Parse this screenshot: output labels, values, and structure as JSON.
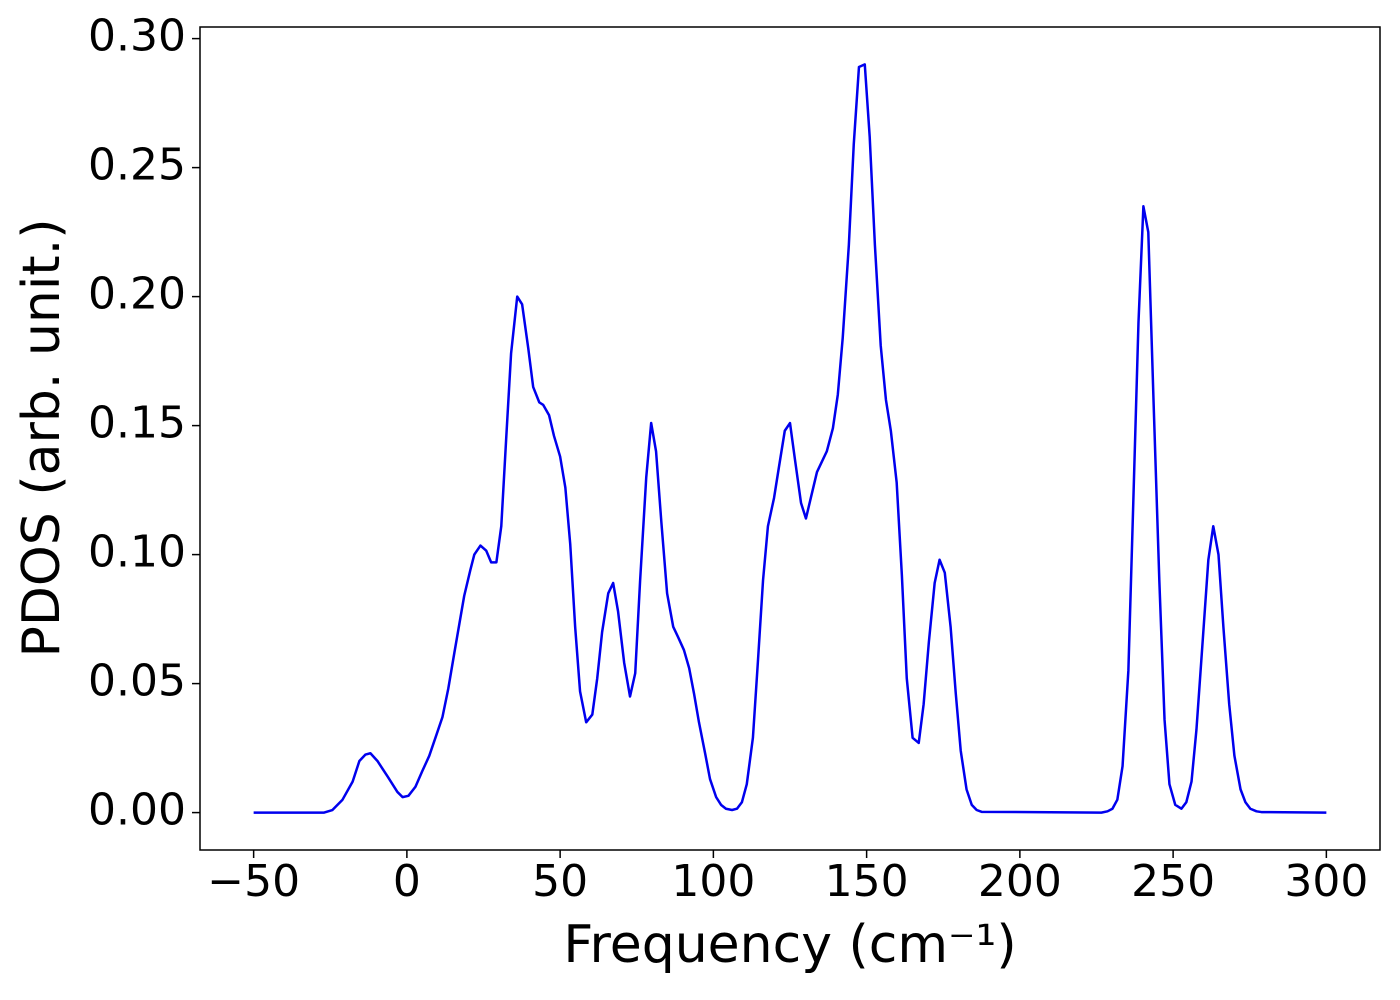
{
  "chart_data": {
    "type": "line",
    "xlabel": "Frequency (cm⁻¹)",
    "ylabel": "PDOS (arb. unit.)",
    "xlim": [
      -67.5,
      317.5
    ],
    "ylim": [
      -0.0145,
      0.3045
    ],
    "xticks": [
      {
        "value": -50,
        "label": "−50"
      },
      0,
      50,
      100,
      150,
      200,
      250,
      300
    ],
    "yticks": [
      {
        "value": 0,
        "label": "0.00"
      },
      {
        "value": 0.05,
        "label": "0.05"
      },
      {
        "value": 0.1,
        "label": "0.10"
      },
      {
        "value": 0.15,
        "label": "0.15"
      },
      {
        "value": 0.2,
        "label": "0.20"
      },
      {
        "value": 0.25,
        "label": "0.25"
      },
      {
        "value": 0.3,
        "label": "0.30"
      }
    ],
    "grid": false,
    "color": "#0000ee",
    "x": [
      -50,
      -27,
      -24.3,
      -21,
      -17.7,
      -15.5,
      -13.5,
      -11.9,
      -9.6,
      -6.3,
      -3.1,
      -1.4,
      0.5,
      2.8,
      5,
      7.3,
      9.6,
      11.6,
      13.5,
      15.5,
      17.1,
      18.7,
      20.7,
      22,
      24,
      25.9,
      27.5,
      29.2,
      30.8,
      32.4,
      34,
      36,
      37.6,
      39.6,
      41.2,
      43.2,
      44.5,
      46.4,
      48,
      50,
      51.7,
      53.3,
      54.9,
      56.5,
      58.5,
      60.5,
      62.1,
      63.7,
      65.7,
      67.3,
      68.9,
      70.9,
      72.8,
      74.5,
      76.1,
      78.1,
      79.7,
      81.3,
      83,
      84.9,
      86.9,
      88.5,
      90.4,
      92.1,
      93.7,
      95.3,
      97.3,
      98.9,
      100.9,
      102.5,
      104.1,
      106.1,
      107.7,
      109.3,
      110.9,
      112.9,
      114.5,
      116.2,
      117.8,
      119.8,
      121.4,
      123.3,
      125,
      126.6,
      128.6,
      130.2,
      131.8,
      133.8,
      135.4,
      137,
      139,
      140.6,
      142.2,
      144.2,
      145.8,
      147.5,
      149.4,
      151,
      152.7,
      154.6,
      156.3,
      157.9,
      159.8,
      161.5,
      163.1,
      165,
      167,
      168.6,
      170.3,
      172.2,
      173.8,
      175.5,
      177.4,
      179.1,
      180.7,
      182.6,
      184.3,
      185.9,
      187.5,
      226.6,
      228.6,
      230.2,
      231.8,
      233.5,
      235.4,
      237,
      238.7,
      240.3,
      241.9,
      243.6,
      245.5,
      247.2,
      248.8,
      250.7,
      252.7,
      254.3,
      256,
      257.6,
      259.5,
      261.5,
      263.1,
      264.8,
      266.4,
      268.3,
      270,
      272,
      273.6,
      275.2,
      277.2,
      278.8,
      300
    ],
    "values": [
      0,
      0,
      0.001,
      0.005,
      0.012,
      0.02,
      0.0225,
      0.023,
      0.02,
      0.014,
      0.008,
      0.006,
      0.0065,
      0.01,
      0.016,
      0.022,
      0.03,
      0.037,
      0.048,
      0.062,
      0.073,
      0.084,
      0.094,
      0.1,
      0.1035,
      0.1015,
      0.097,
      0.097,
      0.111,
      0.145,
      0.178,
      0.2,
      0.197,
      0.18,
      0.165,
      0.159,
      0.158,
      0.154,
      0.146,
      0.138,
      0.126,
      0.104,
      0.072,
      0.047,
      0.035,
      0.038,
      0.052,
      0.07,
      0.085,
      0.089,
      0.078,
      0.058,
      0.045,
      0.054,
      0.09,
      0.13,
      0.151,
      0.14,
      0.113,
      0.085,
      0.072,
      0.068,
      0.063,
      0.056,
      0.046,
      0.035,
      0.023,
      0.013,
      0.006,
      0.003,
      0.0015,
      0.001,
      0.0015,
      0.004,
      0.011,
      0.029,
      0.058,
      0.09,
      0.111,
      0.122,
      0.134,
      0.148,
      0.151,
      0.137,
      0.12,
      0.114,
      0.122,
      0.132,
      0.136,
      0.14,
      0.149,
      0.162,
      0.184,
      0.22,
      0.259,
      0.289,
      0.29,
      0.262,
      0.22,
      0.181,
      0.16,
      0.148,
      0.128,
      0.092,
      0.052,
      0.029,
      0.027,
      0.042,
      0.066,
      0.089,
      0.098,
      0.093,
      0.072,
      0.046,
      0.024,
      0.009,
      0.003,
      0.001,
      0.0003,
      0,
      0.0005,
      0.0015,
      0.005,
      0.018,
      0.055,
      0.12,
      0.19,
      0.235,
      0.225,
      0.16,
      0.09,
      0.036,
      0.011,
      0.003,
      0.0015,
      0.004,
      0.012,
      0.032,
      0.064,
      0.098,
      0.111,
      0.1,
      0.072,
      0.042,
      0.022,
      0.009,
      0.004,
      0.0015,
      0.0005,
      0.0002,
      0
    ]
  }
}
